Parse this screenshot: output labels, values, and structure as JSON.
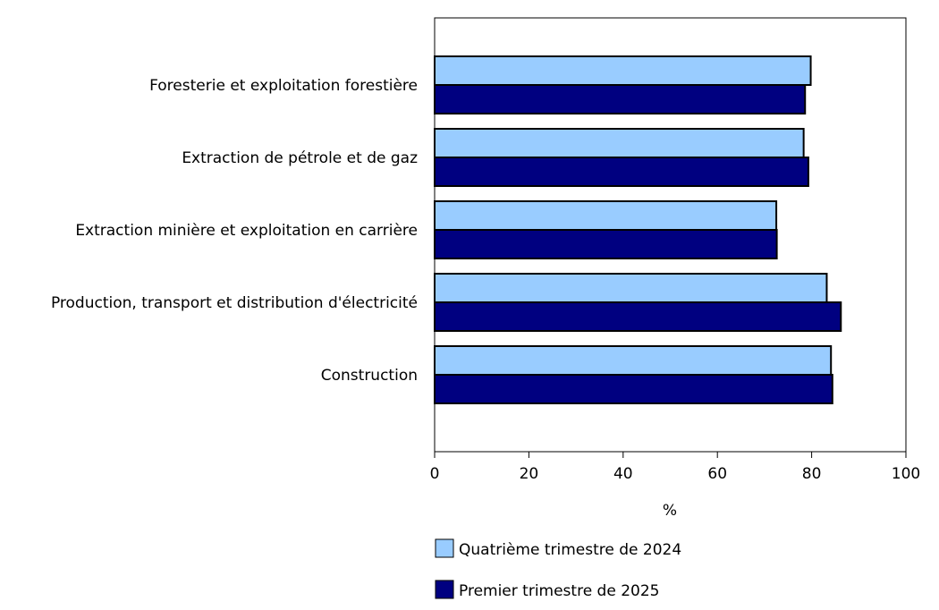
{
  "chart_data": {
    "type": "bar",
    "orientation": "horizontal",
    "categories": [
      "Foresterie et exploitation forestière",
      "Extraction de pétrole et de gaz",
      "Extraction minière et exploitation en carrière",
      "Production, transport et distribution d'électricité",
      "Construction"
    ],
    "series": [
      {
        "name": "Quatrième trimestre de 2024",
        "color": "#99ccff",
        "values": [
          79.8,
          78.3,
          72.5,
          83.2,
          84.1
        ]
      },
      {
        "name": "Premier trimestre de 2025",
        "color": "#000080",
        "values": [
          78.6,
          79.3,
          72.6,
          86.2,
          84.4
        ]
      }
    ],
    "xlabel": "%",
    "xlim": [
      0,
      100
    ],
    "xticks": [
      "0",
      "20",
      "40",
      "60",
      "80",
      "100"
    ],
    "legend_position": "bottom"
  }
}
